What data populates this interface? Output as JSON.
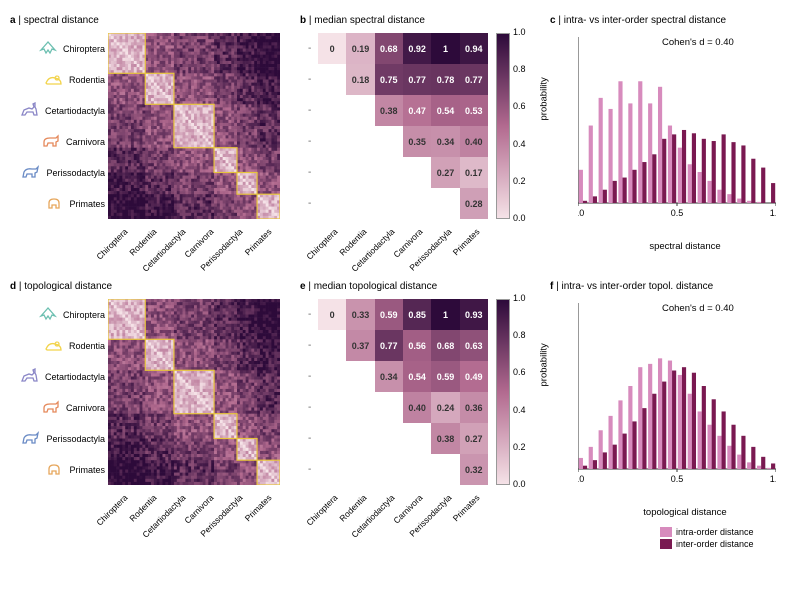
{
  "species": [
    "Chiroptera",
    "Rodentia",
    "Cetartiodactyla",
    "Carnivora",
    "Perissodactyla",
    "Primates"
  ],
  "icon_colors": [
    "#6bbfb0",
    "#f2d34a",
    "#8b87c7",
    "#e5895b",
    "#6a8bc5",
    "#e6a65c"
  ],
  "panels": {
    "a": {
      "title": "a | spectral distance"
    },
    "b": {
      "title": "b | median spectral distance"
    },
    "c": {
      "title": "c | intra- vs inter-order spectral distance",
      "cohen": "Cohen's d = 0.40",
      "xlabel": "spectral distance"
    },
    "d": {
      "title": "d | topological distance"
    },
    "e": {
      "title": "e | median topological distance"
    },
    "f": {
      "title": "f | intra- vs inter-order topol. distance",
      "cohen": "Cohen's d = 0.40",
      "xlabel": "topological distance"
    }
  },
  "colormap": {
    "low": "#f5e2e7",
    "mid": "#b26a8f",
    "high": "#2d0a3a"
  },
  "highlight_color": "#e6c43c",
  "cbar": {
    "min": 0.0,
    "max": 1.0,
    "ticks": [
      0.0,
      0.2,
      0.4,
      0.6,
      0.8,
      1.0
    ]
  },
  "median_b": [
    [
      0,
      0.19,
      0.68,
      0.92,
      1,
      0.94
    ],
    [
      null,
      0.18,
      0.75,
      0.77,
      0.78,
      0.77
    ],
    [
      null,
      null,
      0.38,
      0.47,
      0.54,
      0.53
    ],
    [
      null,
      null,
      null,
      0.35,
      0.34,
      0.4
    ],
    [
      null,
      null,
      null,
      null,
      0.27,
      0.17
    ],
    [
      null,
      null,
      null,
      null,
      null,
      0.28
    ]
  ],
  "median_e": [
    [
      0,
      0.33,
      0.59,
      0.85,
      1,
      0.93
    ],
    [
      null,
      0.37,
      0.77,
      0.56,
      0.68,
      0.63
    ],
    [
      null,
      null,
      0.34,
      0.54,
      0.59,
      0.49
    ],
    [
      null,
      null,
      null,
      0.4,
      0.24,
      0.36
    ],
    [
      null,
      null,
      null,
      null,
      0.38,
      0.27
    ],
    [
      null,
      null,
      null,
      null,
      null,
      0.32
    ]
  ],
  "hist_bins": [
    0.025,
    0.075,
    0.125,
    0.175,
    0.225,
    0.275,
    0.325,
    0.375,
    0.425,
    0.475,
    0.525,
    0.575,
    0.625,
    0.675,
    0.725,
    0.775,
    0.825,
    0.875,
    0.925,
    0.975
  ],
  "hist_c_intra": [
    0.03,
    0.07,
    0.095,
    0.085,
    0.11,
    0.09,
    0.11,
    0.09,
    0.105,
    0.07,
    0.05,
    0.035,
    0.028,
    0.02,
    0.012,
    0.008,
    0.004,
    0.002,
    0.001,
    0.0
  ],
  "hist_c_inter": [
    0.002,
    0.006,
    0.012,
    0.02,
    0.023,
    0.03,
    0.037,
    0.044,
    0.058,
    0.062,
    0.066,
    0.063,
    0.058,
    0.056,
    0.062,
    0.055,
    0.052,
    0.04,
    0.032,
    0.018
  ],
  "hist_f_intra": [
    0.01,
    0.02,
    0.035,
    0.048,
    0.062,
    0.075,
    0.092,
    0.095,
    0.1,
    0.098,
    0.085,
    0.068,
    0.052,
    0.04,
    0.03,
    0.021,
    0.013,
    0.006,
    0.003,
    0.001
  ],
  "hist_f_inter": [
    0.003,
    0.008,
    0.015,
    0.022,
    0.032,
    0.043,
    0.055,
    0.068,
    0.079,
    0.089,
    0.092,
    0.087,
    0.075,
    0.063,
    0.052,
    0.04,
    0.03,
    0.02,
    0.011,
    0.005
  ],
  "hist_ylim": 0.15,
  "hist_yticks": [
    0.0,
    0.05,
    0.1,
    0.15
  ],
  "hist_xticks": [
    0.0,
    0.5,
    1.0
  ],
  "ylabel": "probability",
  "bar_colors": {
    "intra": "#d78bbd",
    "inter": "#7a1951"
  },
  "legend": {
    "intra": "intra-order distance",
    "inter": "inter-order distance"
  }
}
